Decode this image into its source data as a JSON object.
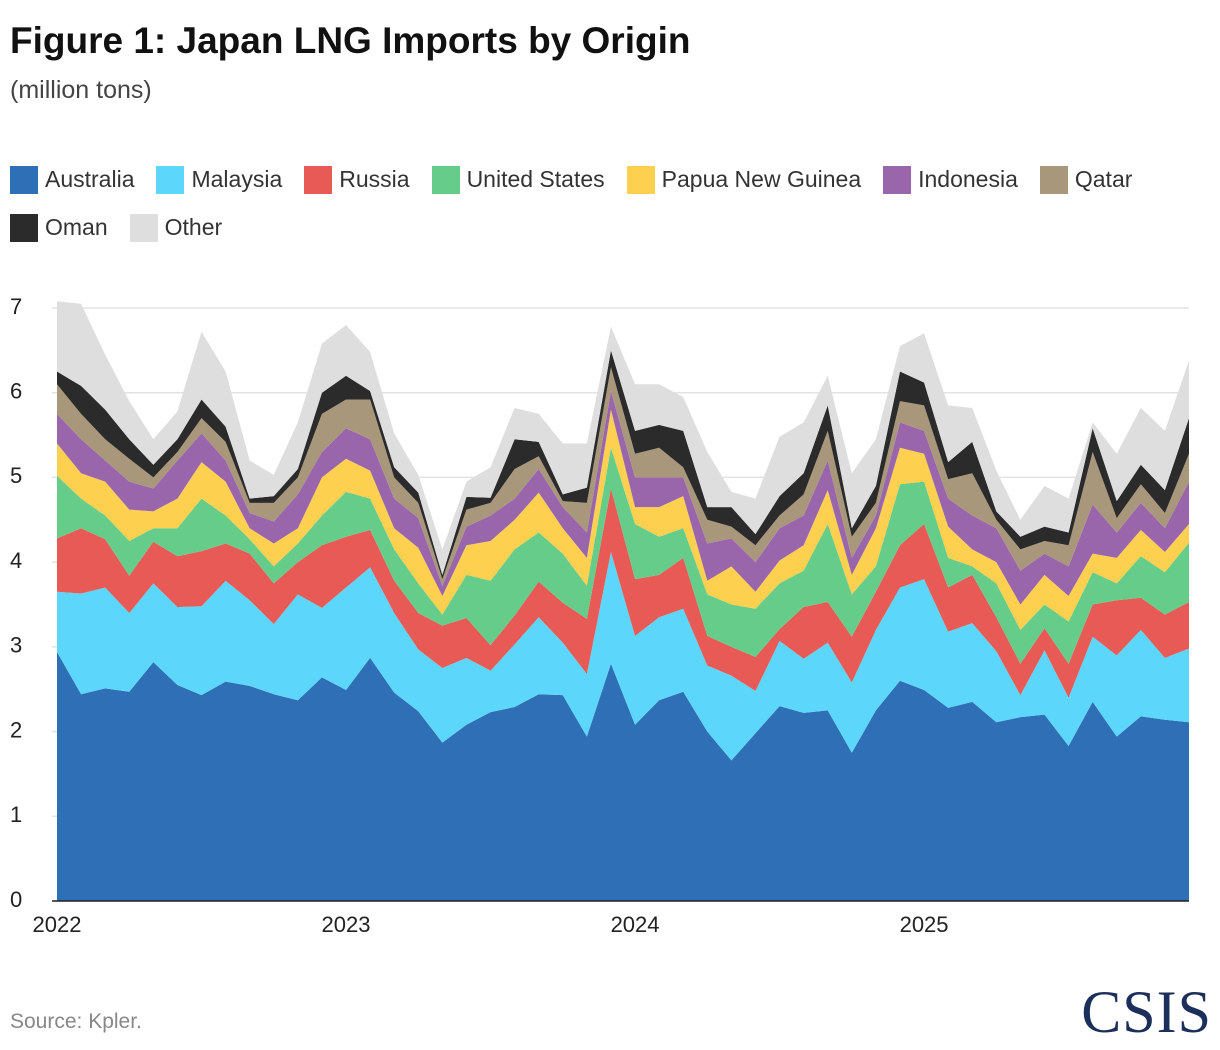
{
  "chart_data": {
    "type": "stacked-area",
    "title": "Figure 1: Japan LNG Imports by Origin",
    "subtitle": "(million tons)",
    "source": "Source: Kpler.",
    "logo": "CSIS",
    "categories": [
      "2022",
      null,
      null,
      null,
      null,
      null,
      null,
      null,
      null,
      null,
      null,
      null,
      "2023",
      null,
      null,
      null,
      null,
      null,
      null,
      null,
      null,
      null,
      null,
      null,
      "2024",
      null,
      null,
      null,
      null,
      null,
      null,
      null,
      null,
      null,
      null,
      null,
      "2025",
      null,
      null,
      null,
      null,
      null,
      null,
      null,
      null,
      null,
      null,
      null
    ],
    "ylim": [
      0,
      7
    ],
    "yticks": [
      0,
      1,
      2,
      3,
      4,
      5,
      6,
      7
    ],
    "grid": true,
    "series": [
      {
        "name": "Australia",
        "color": "#2e6fb5",
        "values": [
          2.94,
          2.44,
          2.51,
          2.47,
          2.82,
          2.55,
          2.43,
          2.59,
          2.54,
          2.44,
          2.37,
          2.64,
          2.49,
          2.87,
          2.46,
          2.24,
          1.87,
          2.08,
          2.23,
          2.29,
          2.44,
          2.43,
          1.94,
          2.8,
          2.08,
          2.37,
          2.47,
          2.0,
          1.66,
          1.98,
          2.3,
          2.22,
          2.25,
          1.75,
          2.25,
          2.6,
          2.49,
          2.28,
          2.35,
          2.11,
          2.17,
          2.2,
          1.83,
          2.35,
          1.94,
          2.18,
          2.14,
          2.11
        ]
      },
      {
        "name": "Malaysia",
        "color": "#5cd6fb",
        "values": [
          0.71,
          1.19,
          1.19,
          0.93,
          0.93,
          0.92,
          1.05,
          1.19,
          1.01,
          0.83,
          1.25,
          0.82,
          1.21,
          1.07,
          0.94,
          0.73,
          0.88,
          0.79,
          0.49,
          0.74,
          0.91,
          0.62,
          0.74,
          1.32,
          1.05,
          0.98,
          0.98,
          0.78,
          1.0,
          0.5,
          0.77,
          0.64,
          0.8,
          0.83,
          0.95,
          1.1,
          1.31,
          0.9,
          0.93,
          0.84,
          0.26,
          0.76,
          0.57,
          0.77,
          0.96,
          1.02,
          0.73,
          0.87
        ]
      },
      {
        "name": "Russia",
        "color": "#e85a55",
        "values": [
          0.63,
          0.77,
          0.57,
          0.44,
          0.49,
          0.6,
          0.65,
          0.44,
          0.55,
          0.48,
          0.38,
          0.74,
          0.6,
          0.44,
          0.38,
          0.43,
          0.5,
          0.47,
          0.3,
          0.34,
          0.42,
          0.47,
          0.65,
          0.75,
          0.67,
          0.5,
          0.6,
          0.35,
          0.34,
          0.4,
          0.14,
          0.61,
          0.48,
          0.54,
          0.45,
          0.5,
          0.65,
          0.52,
          0.57,
          0.4,
          0.37,
          0.26,
          0.4,
          0.38,
          0.65,
          0.38,
          0.51,
          0.55
        ]
      },
      {
        "name": "United States",
        "color": "#66cc8a",
        "values": [
          0.74,
          0.35,
          0.28,
          0.41,
          0.16,
          0.33,
          0.62,
          0.33,
          0.17,
          0.2,
          0.22,
          0.35,
          0.53,
          0.37,
          0.37,
          0.35,
          0.13,
          0.51,
          0.76,
          0.78,
          0.58,
          0.58,
          0.39,
          0.48,
          0.65,
          0.45,
          0.35,
          0.49,
          0.5,
          0.57,
          0.54,
          0.43,
          0.92,
          0.5,
          0.3,
          0.72,
          0.5,
          0.35,
          0.1,
          0.4,
          0.4,
          0.28,
          0.5,
          0.38,
          0.2,
          0.49,
          0.5,
          0.7
        ]
      },
      {
        "name": "Papua New Guinea",
        "color": "#fdd04f",
        "values": [
          0.38,
          0.3,
          0.4,
          0.37,
          0.2,
          0.35,
          0.43,
          0.4,
          0.13,
          0.27,
          0.18,
          0.45,
          0.39,
          0.33,
          0.25,
          0.42,
          0.22,
          0.35,
          0.47,
          0.35,
          0.47,
          0.3,
          0.33,
          0.45,
          0.2,
          0.35,
          0.38,
          0.16,
          0.45,
          0.2,
          0.27,
          0.3,
          0.4,
          0.23,
          0.45,
          0.43,
          0.33,
          0.37,
          0.2,
          0.25,
          0.3,
          0.35,
          0.3,
          0.22,
          0.3,
          0.31,
          0.24,
          0.22
        ]
      },
      {
        "name": "Indonesia",
        "color": "#9a66ab",
        "values": [
          0.35,
          0.4,
          0.25,
          0.33,
          0.27,
          0.45,
          0.34,
          0.25,
          0.18,
          0.26,
          0.4,
          0.3,
          0.36,
          0.37,
          0.35,
          0.35,
          0.12,
          0.22,
          0.3,
          0.25,
          0.28,
          0.25,
          0.3,
          0.22,
          0.35,
          0.35,
          0.22,
          0.44,
          0.33,
          0.35,
          0.38,
          0.35,
          0.35,
          0.2,
          0.15,
          0.3,
          0.27,
          0.33,
          0.4,
          0.4,
          0.4,
          0.25,
          0.35,
          0.58,
          0.3,
          0.32,
          0.28,
          0.5
        ]
      },
      {
        "name": "Qatar",
        "color": "#a8977a",
        "values": [
          0.35,
          0.3,
          0.25,
          0.27,
          0.13,
          0.1,
          0.18,
          0.22,
          0.12,
          0.22,
          0.2,
          0.45,
          0.34,
          0.47,
          0.25,
          0.18,
          0.08,
          0.2,
          0.15,
          0.35,
          0.15,
          0.07,
          0.35,
          0.28,
          0.28,
          0.35,
          0.12,
          0.28,
          0.14,
          0.2,
          0.15,
          0.25,
          0.35,
          0.25,
          0.15,
          0.25,
          0.3,
          0.23,
          0.5,
          0.1,
          0.25,
          0.15,
          0.25,
          0.62,
          0.17,
          0.22,
          0.18,
          0.33
        ]
      },
      {
        "name": "Oman",
        "color": "#2b2b2b",
        "values": [
          0.15,
          0.33,
          0.35,
          0.23,
          0.15,
          0.15,
          0.22,
          0.18,
          0.05,
          0.08,
          0.1,
          0.25,
          0.28,
          0.1,
          0.12,
          0.12,
          0.05,
          0.15,
          0.06,
          0.35,
          0.17,
          0.08,
          0.18,
          0.2,
          0.27,
          0.27,
          0.43,
          0.15,
          0.23,
          0.13,
          0.23,
          0.25,
          0.3,
          0.1,
          0.2,
          0.35,
          0.27,
          0.2,
          0.37,
          0.1,
          0.15,
          0.17,
          0.15,
          0.28,
          0.2,
          0.23,
          0.27,
          0.42
        ]
      },
      {
        "name": "Other",
        "color": "#dedede",
        "values": [
          0.83,
          0.97,
          0.65,
          0.45,
          0.3,
          0.33,
          0.8,
          0.65,
          0.45,
          0.25,
          0.55,
          0.58,
          0.6,
          0.46,
          0.4,
          0.21,
          0.3,
          0.18,
          0.36,
          0.37,
          0.33,
          0.6,
          0.52,
          0.28,
          0.55,
          0.48,
          0.4,
          0.65,
          0.18,
          0.42,
          0.7,
          0.6,
          0.35,
          0.65,
          0.55,
          0.3,
          0.58,
          0.67,
          0.4,
          0.48,
          0.2,
          0.48,
          0.4,
          0.07,
          0.56,
          0.67,
          0.7,
          0.68
        ]
      }
    ]
  }
}
